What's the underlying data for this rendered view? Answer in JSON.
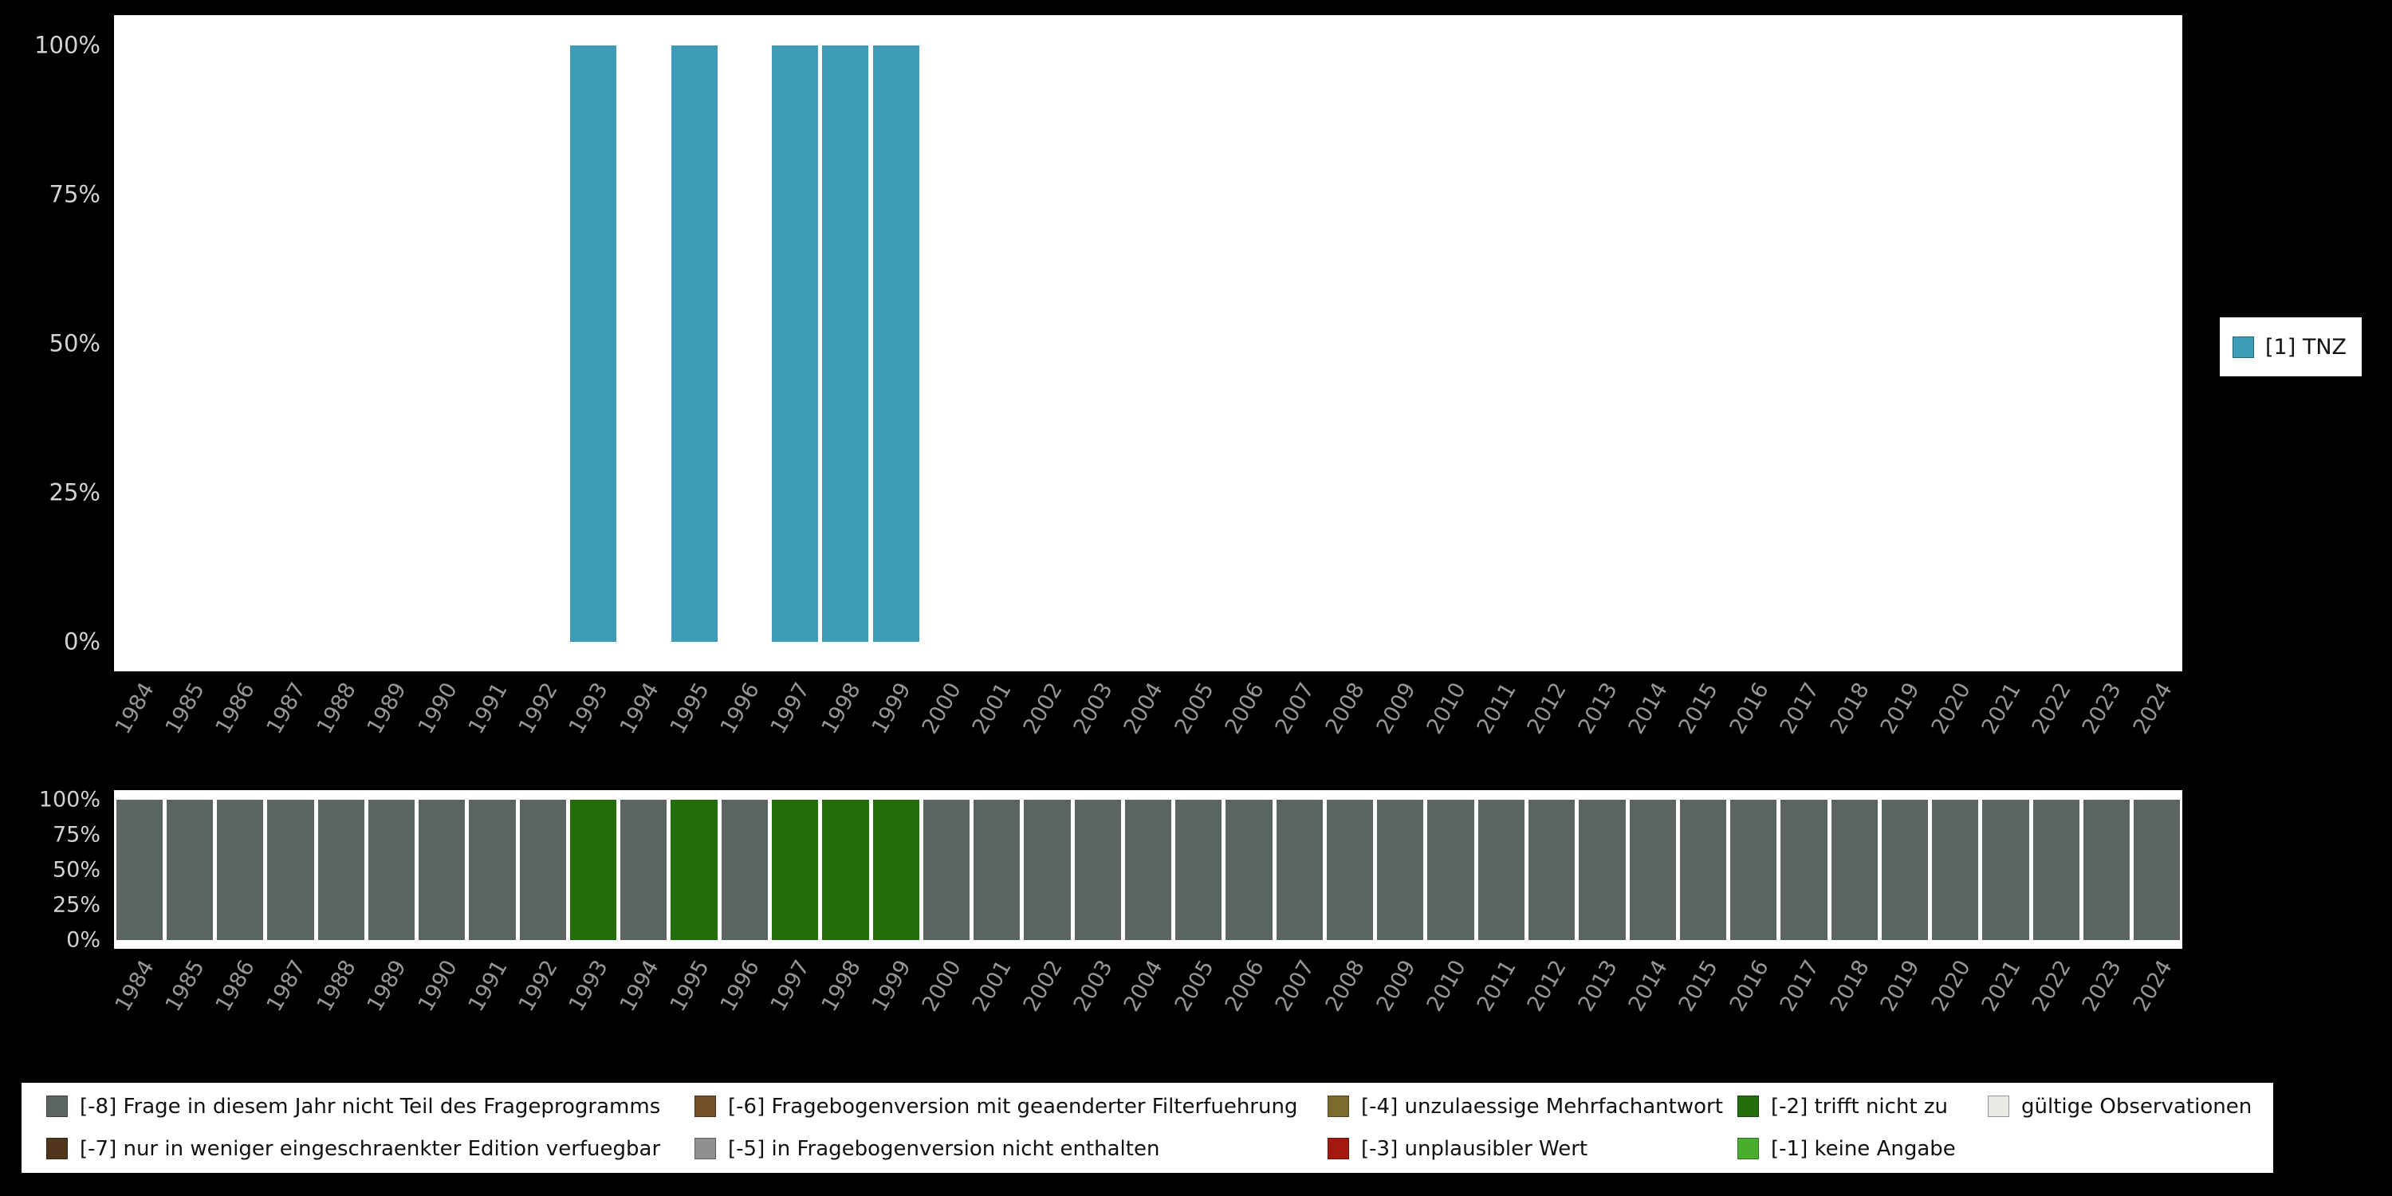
{
  "colors": {
    "background": "#000000",
    "panel": "#ffffff",
    "tnz_bar": "#3f9cb8",
    "axis_tick_label": "#d2d2d2",
    "year_label": "#969696"
  },
  "legend_right": {
    "label": "[1] TNZ",
    "color": "#3f9cb8"
  },
  "chart_data": [
    {
      "type": "bar",
      "title": "",
      "xlabel": "",
      "ylabel": "",
      "ylim": [
        0,
        100
      ],
      "grid": false,
      "legend_position": "right",
      "y_ticks_top_down": [
        "100%",
        "75%",
        "50%",
        "25%",
        "0%"
      ],
      "categories": [
        "1984",
        "1985",
        "1986",
        "1987",
        "1988",
        "1989",
        "1990",
        "1991",
        "1992",
        "1993",
        "1994",
        "1995",
        "1996",
        "1997",
        "1998",
        "1999",
        "2000",
        "2001",
        "2002",
        "2003",
        "2004",
        "2005",
        "2006",
        "2007",
        "2008",
        "2009",
        "2010",
        "2011",
        "2012",
        "2013",
        "2014",
        "2015",
        "2016",
        "2017",
        "2018",
        "2019",
        "2020",
        "2021",
        "2022",
        "2023",
        "2024"
      ],
      "series": [
        {
          "name": "[1] TNZ",
          "color": "#3f9cb8",
          "values": [
            0,
            0,
            0,
            0,
            0,
            0,
            0,
            0,
            0,
            100,
            0,
            100,
            0,
            100,
            100,
            100,
            0,
            0,
            0,
            0,
            0,
            0,
            0,
            0,
            0,
            0,
            0,
            0,
            0,
            0,
            0,
            0,
            0,
            0,
            0,
            0,
            0,
            0,
            0,
            0,
            0
          ]
        }
      ]
    },
    {
      "type": "bar",
      "title": "",
      "xlabel": "",
      "ylabel": "",
      "ylim": [
        0,
        100
      ],
      "grid": false,
      "y_ticks_top_down": [
        "100%",
        "75%",
        "50%",
        "25%",
        "0%"
      ],
      "categories": [
        "1984",
        "1985",
        "1986",
        "1987",
        "1988",
        "1989",
        "1990",
        "1991",
        "1992",
        "1993",
        "1994",
        "1995",
        "1996",
        "1997",
        "1998",
        "1999",
        "2000",
        "2001",
        "2002",
        "2003",
        "2004",
        "2005",
        "2006",
        "2007",
        "2008",
        "2009",
        "2010",
        "2011",
        "2012",
        "2013",
        "2014",
        "2015",
        "2016",
        "2017",
        "2018",
        "2019",
        "2020",
        "2021",
        "2022",
        "2023",
        "2024"
      ],
      "values": [
        100,
        100,
        100,
        100,
        100,
        100,
        100,
        100,
        100,
        100,
        100,
        100,
        100,
        100,
        100,
        100,
        100,
        100,
        100,
        100,
        100,
        100,
        100,
        100,
        100,
        100,
        100,
        100,
        100,
        100,
        100,
        100,
        100,
        100,
        100,
        100,
        100,
        100,
        100,
        100,
        100
      ],
      "codes": [
        "-8",
        "-8",
        "-8",
        "-8",
        "-8",
        "-8",
        "-8",
        "-8",
        "-8",
        "-2",
        "-8",
        "-2",
        "-8",
        "-2",
        "-2",
        "-2",
        "-8",
        "-8",
        "-8",
        "-8",
        "-8",
        "-8",
        "-8",
        "-8",
        "-8",
        "-8",
        "-8",
        "-8",
        "-8",
        "-8",
        "-8",
        "-8",
        "-8",
        "-8",
        "-8",
        "-8",
        "-8",
        "-8",
        "-8",
        "-8",
        "-8"
      ],
      "code_colors": {
        "-8": "#5d6562",
        "-2": "#226e0d"
      }
    }
  ],
  "missing_legend": {
    "rows": [
      [
        {
          "label": "[-8] Frage in diesem Jahr nicht Teil des Frageprogramms",
          "color": "#5d6562"
        },
        {
          "label": "[-6] Fragebogenversion mit geaenderter Filterfuehrung",
          "color": "#74502a"
        },
        {
          "label": "[-4] unzulaessige Mehrfachantwort",
          "color": "#7d6a2f"
        },
        {
          "label": "[-2] trifft nicht zu",
          "color": "#226e0d"
        },
        {
          "label": "gültige Observationen",
          "color": "#e7e9e5"
        }
      ],
      [
        {
          "label": "[-7] nur in weniger eingeschraenkter Edition verfuegbar",
          "color": "#50361d"
        },
        {
          "label": "[-5] in Fragebogenversion nicht enthalten",
          "color": "#909090"
        },
        {
          "label": "[-3] unplausibler Wert",
          "color": "#a51a0f"
        },
        {
          "label": "[-1] keine Angabe",
          "color": "#49ad2d"
        }
      ]
    ]
  }
}
